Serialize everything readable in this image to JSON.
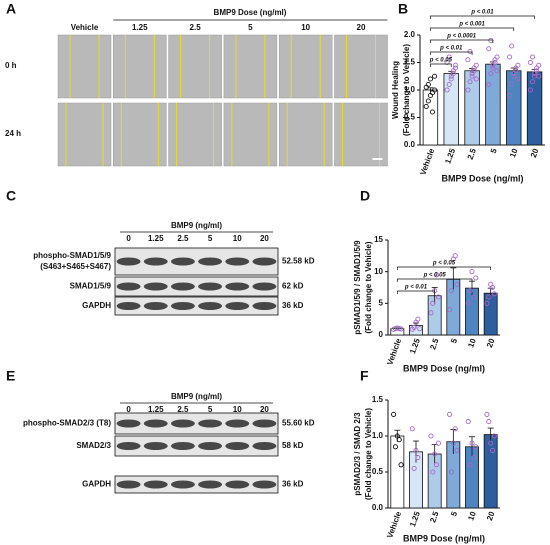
{
  "panels": {
    "a": "A",
    "c": "C",
    "e": "E"
  },
  "microscopy": {
    "group_label": "BMP9 Dose (ng/ml)",
    "columns": [
      "Vehicle",
      "1.25",
      "2.5",
      "5",
      "10",
      "20"
    ],
    "rows": [
      "0 h",
      "24 h"
    ]
  },
  "blots": [
    {
      "treatment": "BMP9 (ng/ml)",
      "lanes": [
        "0",
        "1.25",
        "2.5",
        "5",
        "10",
        "20"
      ],
      "rows": [
        {
          "label": [
            "phospho-SMAD1/5/9",
            "(S463+S465+S467)"
          ],
          "size": "52.58 kD"
        },
        {
          "label": [
            "SMAD1/5/9"
          ],
          "size": "62 kD"
        },
        {
          "label": [
            "GAPDH"
          ],
          "size": "36 kD"
        }
      ]
    },
    {
      "treatment": "BMP9 (ng/ml)",
      "lanes": [
        "0",
        "1.25",
        "2.5",
        "5",
        "10",
        "20"
      ],
      "rows": [
        {
          "label": [
            "phospho-SMAD2/3 (T8)"
          ],
          "size": "55.60 kD"
        },
        {
          "label": [
            "SMAD2/3"
          ],
          "size": "58 kD"
        },
        {
          "label": [
            "GAPDH"
          ],
          "size": "36 kD"
        }
      ]
    }
  ],
  "chart_data": [
    {
      "type": "bar",
      "panel": "B",
      "categories": [
        "Vehicle",
        "1.25",
        "2.5",
        "5",
        "10",
        "20"
      ],
      "values": [
        1.0,
        1.3,
        1.35,
        1.47,
        1.35,
        1.33
      ],
      "errors": [
        0.04,
        0.04,
        0.04,
        0.04,
        0.05,
        0.04
      ],
      "points": [
        [
          0.7,
          0.8,
          0.9,
          0.95,
          1.0,
          1.05,
          1.1,
          1.2,
          0.6,
          1.25
        ],
        [
          1.0,
          1.1,
          1.2,
          1.3,
          1.4,
          1.5,
          1.6,
          1.25,
          1.35,
          1.45
        ],
        [
          1.0,
          1.15,
          1.25,
          1.35,
          1.45,
          1.55,
          1.7,
          1.3,
          1.4,
          1.2
        ],
        [
          1.1,
          1.3,
          1.4,
          1.5,
          1.6,
          1.75,
          1.9,
          1.45,
          1.55,
          1.35
        ],
        [
          0.9,
          1.1,
          1.25,
          1.35,
          1.45,
          1.6,
          1.8,
          1.3,
          1.4,
          1.2
        ],
        [
          1.0,
          1.15,
          1.25,
          1.35,
          1.45,
          1.5,
          1.6,
          1.3,
          1.4,
          1.25
        ]
      ],
      "colors": [
        "#ffffff",
        "#d6e6f6",
        "#aecbea",
        "#7fa9d9",
        "#4f84c2",
        "#2d5f9e"
      ],
      "point_colors": [
        "#111111",
        "#a36ac7",
        "#a36ac7",
        "#a36ac7",
        "#a36ac7",
        "#a36ac7"
      ],
      "ylabel": [
        "Wound Healing",
        "(Fold change to Vehicle)"
      ],
      "xlabel": "BMP9 Dose (ng/ml)",
      "ylim": [
        0,
        2
      ],
      "yticks": [
        {
          "value": 0,
          "label": "0.0"
        },
        {
          "value": 0.5,
          "label": "0.5"
        },
        {
          "value": 1,
          "label": "1.0"
        },
        {
          "value": 1.5,
          "label": "1.5"
        },
        {
          "value": 2,
          "label": "2.0"
        }
      ],
      "annotations": [
        {
          "text": "p < 0.05",
          "from": 0,
          "to": 1
        },
        {
          "text": "p < 0.01",
          "from": 0,
          "to": 2
        },
        {
          "text": "p < 0.0001",
          "from": 0,
          "to": 3
        },
        {
          "text": "p < 0.001",
          "from": 0,
          "to": 4
        },
        {
          "text": "p < 0.01",
          "from": 0,
          "to": 5
        }
      ]
    },
    {
      "type": "bar",
      "panel": "D",
      "categories": [
        "Vehicle",
        "1.25",
        "2.5",
        "5",
        "10",
        "20"
      ],
      "values": [
        1.0,
        1.5,
        6.2,
        8.8,
        7.4,
        6.6
      ],
      "errors": [
        0.1,
        0.4,
        1.3,
        1.8,
        1.1,
        0.8
      ],
      "points": [
        [
          0.9,
          1.0,
          1.1,
          1.0,
          0.95
        ],
        [
          0.9,
          1.2,
          2.0,
          2.5,
          1.0
        ],
        [
          3.5,
          5,
          7,
          9.5,
          6
        ],
        [
          4,
          7,
          12,
          12.5,
          8
        ],
        [
          5,
          7,
          10,
          6,
          9
        ],
        [
          5,
          6,
          8,
          7.5,
          6.5
        ]
      ],
      "colors": [
        "#ffffff",
        "#d6e6f6",
        "#aecbea",
        "#7fa9d9",
        "#4f84c2",
        "#2d5f9e"
      ],
      "point_colors": [
        "#a36ac7",
        "#a36ac7",
        "#a36ac7",
        "#a36ac7",
        "#a36ac7",
        "#a36ac7"
      ],
      "ylabel": [
        "pSMAD1/5/9 / SMAD1/5/9",
        "(Fold change to Vehicle)"
      ],
      "xlabel": "BMP9 Dose (ng/ml)",
      "ylim": [
        0,
        15
      ],
      "yticks": [
        0,
        5,
        10,
        15
      ],
      "annotations": [
        {
          "text": "p < 0.01",
          "from": 0,
          "to": 2
        },
        {
          "text": "p < 0.05",
          "from": 0,
          "to": 4
        },
        {
          "text": "p < 0.05",
          "from": 0,
          "to": 5
        }
      ]
    },
    {
      "type": "bar",
      "panel": "F",
      "categories": [
        "Vehicle",
        "1.25",
        "2.5",
        "5",
        "10",
        "20"
      ],
      "values": [
        1.0,
        0.78,
        0.75,
        0.92,
        0.85,
        1.02
      ],
      "errors": [
        0.08,
        0.15,
        0.13,
        0.17,
        0.14,
        0.09
      ],
      "points": [
        [
          1.3,
          0.85,
          1.0,
          0.95,
          0.6
        ],
        [
          1.1,
          0.55,
          0.8,
          0.7
        ],
        [
          1.0,
          0.5,
          0.75,
          0.6,
          0.9
        ],
        [
          1.3,
          0.5,
          0.9,
          1.1,
          0.8
        ],
        [
          1.2,
          0.6,
          0.9,
          0.7,
          0.85
        ],
        [
          1.3,
          1.2,
          0.9,
          0.8,
          1.0
        ]
      ],
      "colors": [
        "#ffffff",
        "#d6e6f6",
        "#aecbea",
        "#7fa9d9",
        "#4f84c2",
        "#2d5f9e"
      ],
      "point_colors": [
        "#111111",
        "#a36ac7",
        "#a36ac7",
        "#a36ac7",
        "#a36ac7",
        "#a36ac7"
      ],
      "ylabel": [
        "pSMAD2/3 / SMAD 2/3",
        "(Fold change to Vehicle)"
      ],
      "xlabel": "BMP9 Dose (ng/ml)",
      "ylim": [
        0,
        1.5
      ],
      "yticks": [
        {
          "value": 0,
          "label": "0.0"
        },
        {
          "value": 0.5,
          "label": "0.5"
        },
        {
          "value": 1,
          "label": "1.0"
        },
        {
          "value": 1.5,
          "label": "1.5"
        }
      ],
      "annotations": []
    }
  ]
}
